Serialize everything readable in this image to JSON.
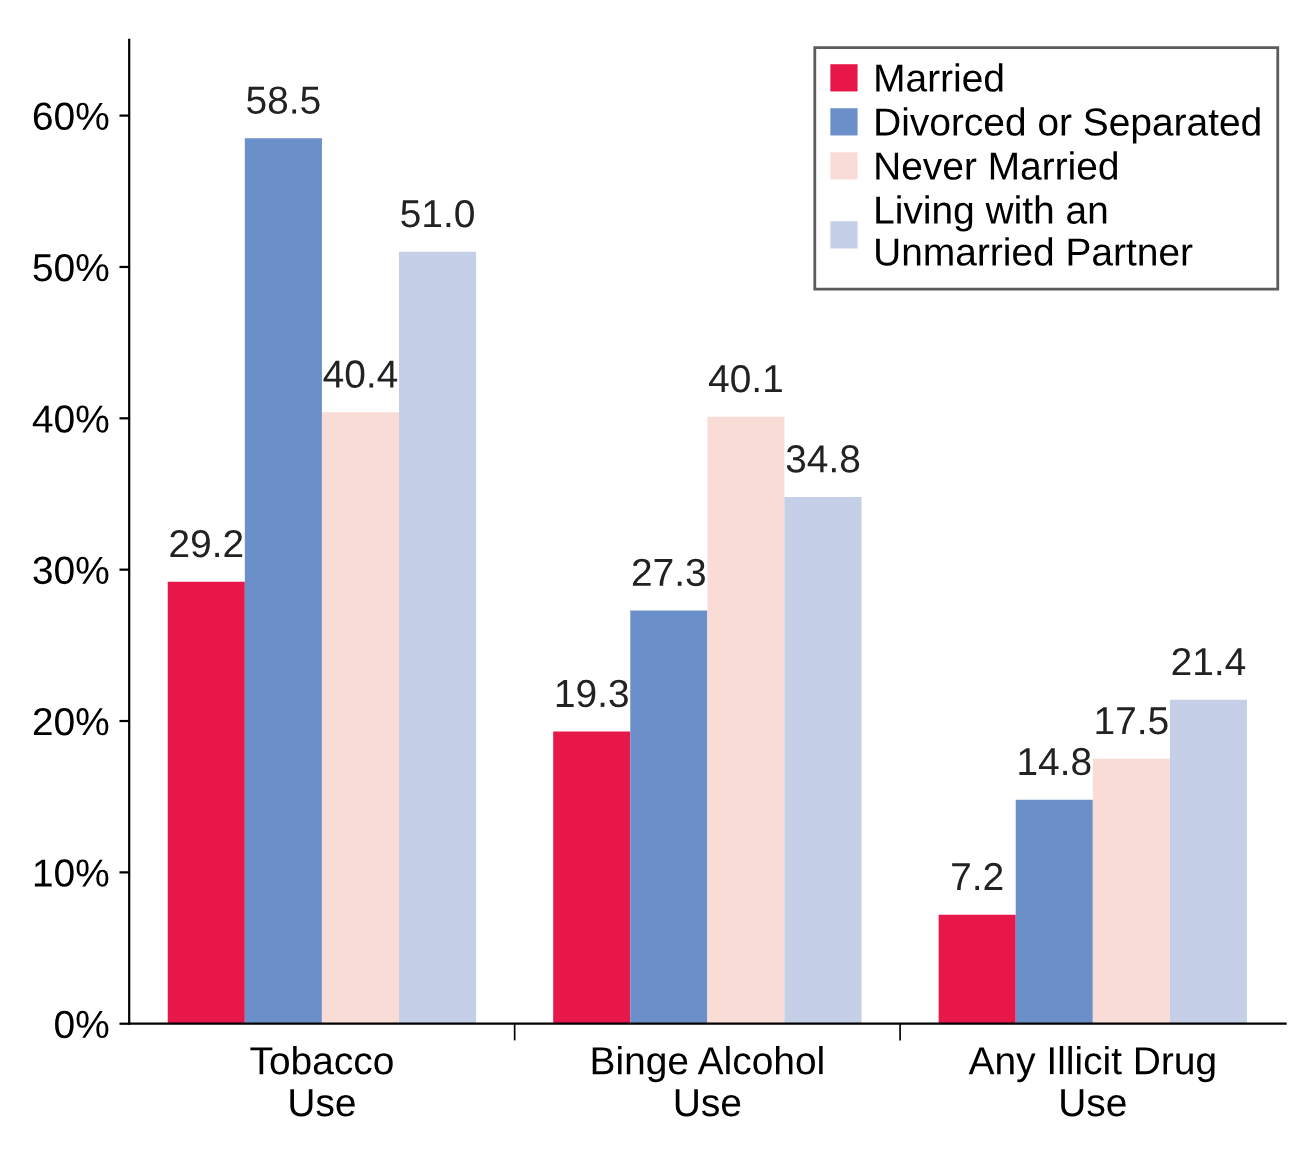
{
  "chart_data": {
    "type": "bar",
    "categories": [
      "Tobacco\nUse",
      "Binge Alcohol\nUse",
      "Any Illicit Drug\nUse"
    ],
    "series": [
      {
        "name": "Married",
        "color": "#e8174a",
        "values": [
          29.2,
          19.3,
          7.2
        ],
        "value_labels": [
          "29.2",
          "19.3",
          "7.2"
        ]
      },
      {
        "name": "Divorced or Separated",
        "color": "#6b8fc8",
        "values": [
          58.5,
          27.3,
          14.8
        ],
        "value_labels": [
          "58.5",
          "27.3",
          "14.8"
        ]
      },
      {
        "name": "Never Married",
        "color": "#fadcd6",
        "values": [
          40.4,
          40.1,
          17.5
        ],
        "value_labels": [
          "40.4",
          "40.1",
          "17.5"
        ]
      },
      {
        "name": "Living with an\nUnmarried Partner",
        "color": "#c5cfe8",
        "values": [
          51.0,
          34.8,
          21.4
        ],
        "value_labels": [
          "51.0",
          "34.8",
          "21.4"
        ]
      }
    ],
    "ylim": [
      0,
      65
    ],
    "yticks": [
      {
        "value": 0,
        "label": "0%"
      },
      {
        "value": 10,
        "label": "10%"
      },
      {
        "value": 20,
        "label": "20%"
      },
      {
        "value": 30,
        "label": "30%"
      },
      {
        "value": 40,
        "label": "40%"
      },
      {
        "value": 50,
        "label": "50%"
      },
      {
        "value": 60,
        "label": "60%"
      }
    ],
    "legend": "top right",
    "grid": false
  }
}
